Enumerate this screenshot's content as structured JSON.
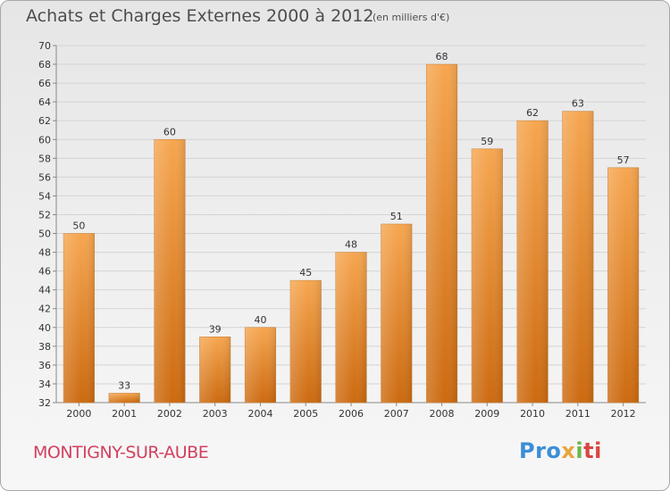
{
  "header": {
    "title": "Achats et Charges Externes 2000 à 2012",
    "unit": "(en milliers d'€)"
  },
  "footer": {
    "commune": "MONTIGNY-SUR-AUBE",
    "logo_parts": [
      "Pro",
      "x",
      "i",
      "ti"
    ]
  },
  "colors": {
    "bar_top": "#f6a650",
    "bar_bottom": "#cc6a10",
    "commune": "#d2415f"
  },
  "chart_data": {
    "type": "bar",
    "title": "Achats et Charges Externes 2000 à 2012",
    "categories": [
      "2000",
      "2001",
      "2002",
      "2003",
      "2004",
      "2005",
      "2006",
      "2007",
      "2008",
      "2009",
      "2010",
      "2011",
      "2012"
    ],
    "values": [
      50,
      33,
      60,
      39,
      40,
      45,
      48,
      51,
      68,
      59,
      62,
      63,
      57
    ],
    "ylim": [
      32,
      70
    ],
    "yticks": [
      32,
      34,
      36,
      38,
      40,
      42,
      44,
      46,
      48,
      50,
      52,
      54,
      56,
      58,
      60,
      62,
      64,
      66,
      68,
      70
    ],
    "grid": "horizontal",
    "xlabel": "",
    "ylabel": ""
  }
}
